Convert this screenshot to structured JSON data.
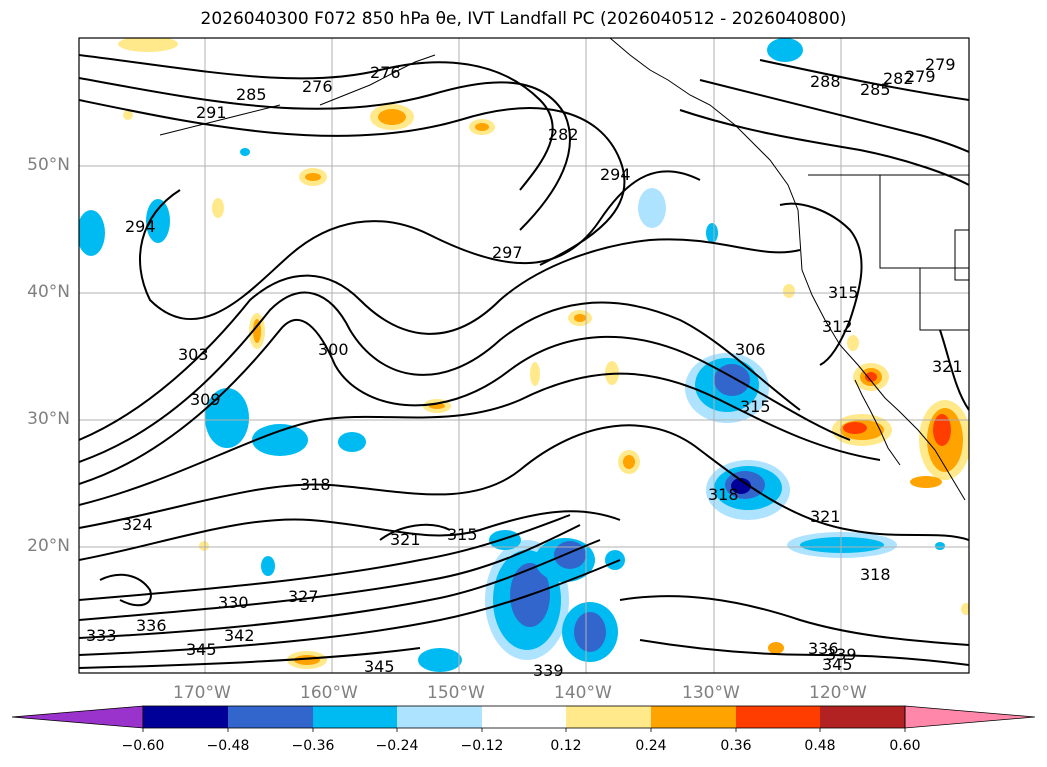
{
  "title": "2026040300 F072 850 hPa θe, IVT Landfall PC (2026040512 - 2026040800)",
  "map": {
    "lat_labels": [
      "50°N",
      "40°N",
      "30°N",
      "20°N"
    ],
    "lon_labels": [
      "170°W",
      "160°W",
      "150°W",
      "140°W",
      "130°W",
      "120°W"
    ],
    "contour_labels": [
      "276",
      "276",
      "279",
      "279",
      "282",
      "282",
      "285",
      "285",
      "288",
      "291",
      "294",
      "294",
      "297",
      "300",
      "303",
      "306",
      "309",
      "312",
      "315",
      "315",
      "315",
      "318",
      "318",
      "318",
      "321",
      "321",
      "321",
      "324",
      "327",
      "330",
      "333",
      "336",
      "336",
      "339",
      "339",
      "342",
      "345",
      "345",
      "345"
    ],
    "contour_color": "#000000",
    "grid": true
  },
  "colorbar": {
    "ticks": [
      "−0.60",
      "−0.48",
      "−0.36",
      "−0.24",
      "−0.12",
      "0.12",
      "0.24",
      "0.36",
      "0.48",
      "0.60"
    ],
    "colors": [
      "#9933cc",
      "#000099",
      "#3366cc",
      "#00bbf2",
      "#aee3ff",
      "#ffffff",
      "#ffe98a",
      "#ffa300",
      "#ff3d00",
      "#b22222",
      "#ff88aa",
      "#ff88aa"
    ]
  }
}
